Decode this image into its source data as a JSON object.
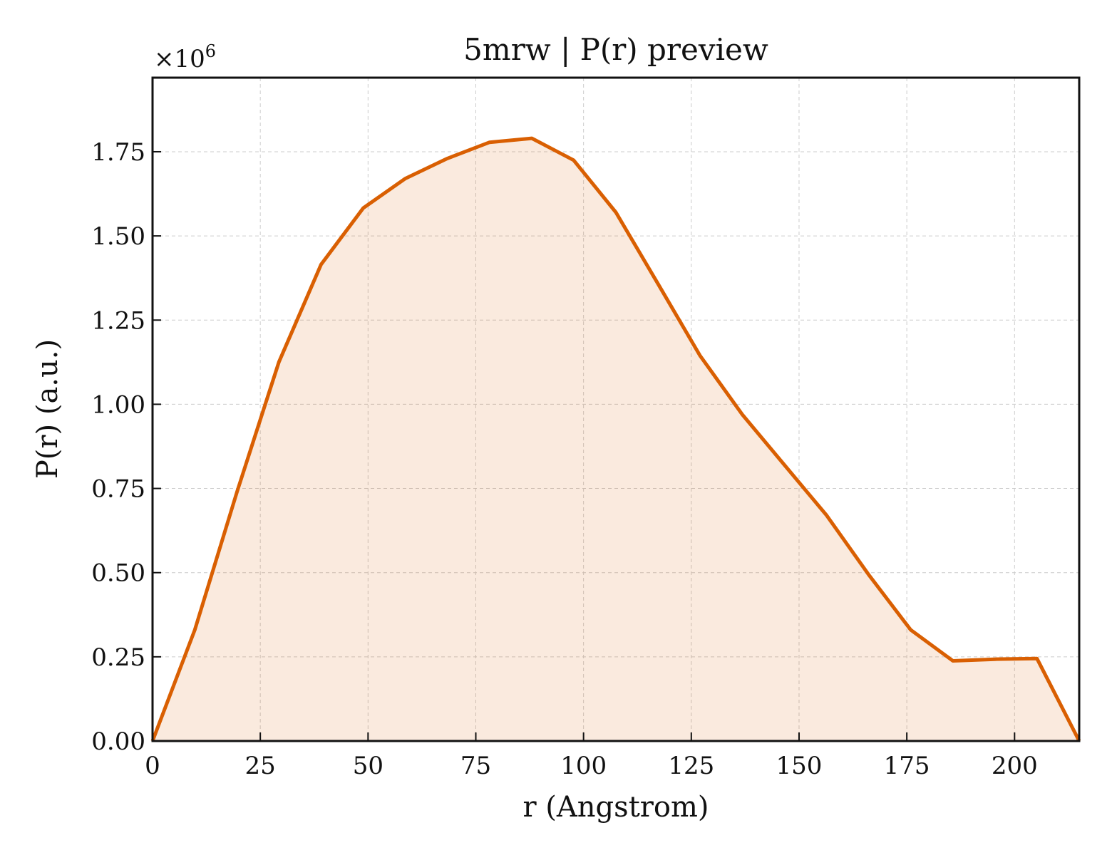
{
  "chart_data": {
    "type": "area",
    "title": "5mrw | P(r) preview",
    "xlabel": "r (Angstrom)",
    "ylabel": "P(r) (a.u.)",
    "y_multiplier": "×10",
    "y_multiplier_exp": "6",
    "xlim": [
      0,
      215
    ],
    "ylim": [
      0,
      1.97
    ],
    "grid": true,
    "line_color": "#d95f02",
    "fill_color": "#d95f02",
    "fill_opacity": 0.13,
    "x_ticks": [
      0,
      25,
      50,
      75,
      100,
      125,
      150,
      175,
      200
    ],
    "x_tick_labels": [
      "0",
      "25",
      "50",
      "75",
      "100",
      "125",
      "150",
      "175",
      "200"
    ],
    "y_ticks": [
      0,
      0.25,
      0.5,
      0.75,
      1.0,
      1.25,
      1.5,
      1.75
    ],
    "y_tick_labels": [
      "0.00",
      "0.25",
      "0.50",
      "0.75",
      "1.00",
      "1.25",
      "1.50",
      "1.75"
    ],
    "series": [
      {
        "x": [
          0,
          9.8,
          19.6,
          29.3,
          39.1,
          48.9,
          58.6,
          68.4,
          78.2,
          88.0,
          97.7,
          107.5,
          117.3,
          127.0,
          136.8,
          146.6,
          156.4,
          166.1,
          175.9,
          185.7,
          195.5,
          205.2,
          215.0
        ],
        "y": [
          0.0,
          0.33,
          0.74,
          1.125,
          1.415,
          1.583,
          1.67,
          1.73,
          1.778,
          1.79,
          1.725,
          1.57,
          1.357,
          1.145,
          0.97,
          0.82,
          0.67,
          0.495,
          0.33,
          0.238,
          0.243,
          0.245,
          0.0
        ]
      }
    ]
  }
}
